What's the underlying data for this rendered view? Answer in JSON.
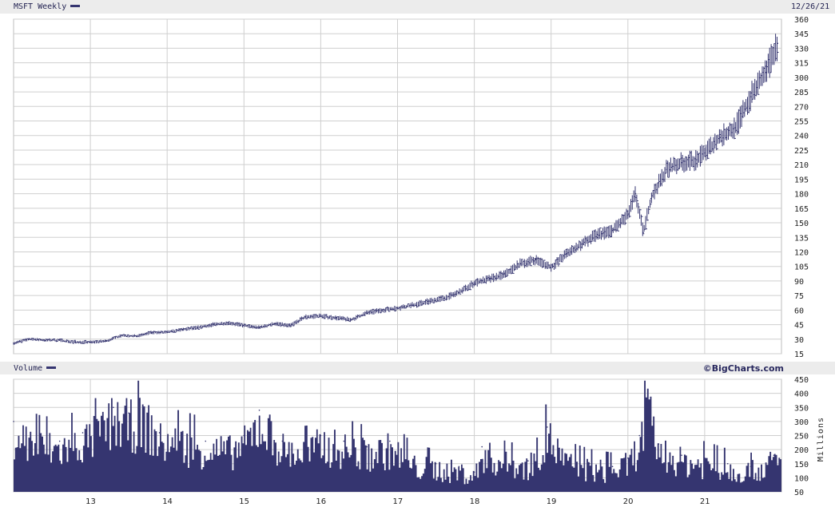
{
  "header": {
    "title": "MSFT Weekly",
    "date": "12/26/21",
    "volume_label": "Volume",
    "brand": "©BigCharts.com",
    "units": "Millions"
  },
  "colors": {
    "series": "#353570",
    "grid": "#cfcfcf",
    "band": "#ececec"
  },
  "chart_data": [
    {
      "type": "line",
      "title": "MSFT Weekly",
      "x_ticks": [
        "13",
        "14",
        "15",
        "16",
        "17",
        "18",
        "19",
        "20",
        "21"
      ],
      "y_ticks": [
        15,
        30,
        45,
        60,
        75,
        90,
        105,
        120,
        135,
        150,
        165,
        180,
        195,
        210,
        225,
        240,
        255,
        270,
        285,
        300,
        315,
        330,
        345,
        360
      ],
      "ylim": [
        15,
        360
      ],
      "xlim": [
        2012.0,
        2022.0
      ],
      "grid": true,
      "series": [
        {
          "x": [
            2012.0,
            2012.2,
            2012.4,
            2012.6,
            2012.8,
            2013.0,
            2013.2,
            2013.4,
            2013.6,
            2013.8,
            2014.0,
            2014.2,
            2014.4,
            2014.6,
            2014.8,
            2015.0,
            2015.2,
            2015.4,
            2015.6,
            2015.8,
            2016.0,
            2016.2,
            2016.4,
            2016.6,
            2016.8,
            2017.0,
            2017.2,
            2017.4,
            2017.6,
            2017.8,
            2018.0,
            2018.2,
            2018.4,
            2018.6,
            2018.8,
            2019.0,
            2019.2,
            2019.4,
            2019.6,
            2019.8,
            2020.0,
            2020.1,
            2020.2,
            2020.3,
            2020.5,
            2020.7,
            2020.9,
            2021.0,
            2021.2,
            2021.4,
            2021.6,
            2021.8,
            2021.95
          ],
          "y": [
            26,
            30,
            29,
            29,
            27,
            27,
            28,
            34,
            33,
            37,
            37,
            40,
            42,
            45,
            47,
            44,
            42,
            46,
            44,
            53,
            54,
            52,
            50,
            57,
            60,
            62,
            65,
            69,
            72,
            78,
            88,
            92,
            97,
            108,
            112,
            104,
            118,
            128,
            138,
            142,
            158,
            180,
            140,
            175,
            205,
            212,
            215,
            222,
            238,
            248,
            280,
            305,
            335
          ]
        }
      ]
    },
    {
      "type": "bar",
      "title": "Volume",
      "ylabel": "Millions",
      "y_ticks": [
        50,
        100,
        150,
        200,
        250,
        300,
        350,
        400,
        450
      ],
      "ylim": [
        50,
        450
      ],
      "xlim": [
        2012.0,
        2022.0
      ],
      "grid": true,
      "x": [
        2012.0,
        2012.3,
        2012.6,
        2012.9,
        2013.1,
        2013.3,
        2013.5,
        2013.7,
        2013.9,
        2014.2,
        2014.5,
        2014.8,
        2015.0,
        2015.2,
        2015.5,
        2015.8,
        2016.0,
        2016.3,
        2016.6,
        2016.9,
        2017.2,
        2017.5,
        2017.8,
        2018.0,
        2018.1,
        2018.4,
        2018.7,
        2018.95,
        2019.2,
        2019.5,
        2019.8,
        2020.0,
        2020.15,
        2020.25,
        2020.4,
        2020.7,
        2021.0,
        2021.3,
        2021.6,
        2021.9
      ],
      "values": [
        300,
        240,
        230,
        260,
        290,
        350,
        330,
        340,
        260,
        250,
        230,
        220,
        250,
        340,
        230,
        210,
        250,
        230,
        210,
        230,
        160,
        150,
        140,
        120,
        210,
        170,
        160,
        280,
        170,
        150,
        140,
        170,
        250,
        380,
        220,
        180,
        170,
        150,
        140,
        180
      ]
    }
  ]
}
